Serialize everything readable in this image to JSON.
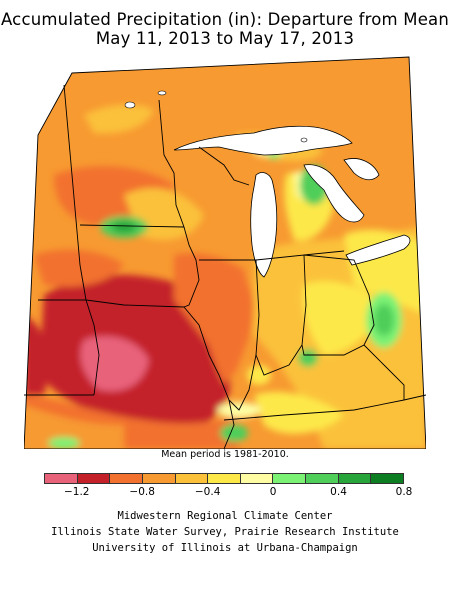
{
  "title": {
    "line1": "Accumulated Precipitation (in): Departure from Mean",
    "line2": "May 11, 2013 to May 17, 2013"
  },
  "note": "Mean period is 1981-2010.",
  "legend": {
    "colors": [
      "#e8627a",
      "#c4202a",
      "#f2712e",
      "#f79a31",
      "#fbc13a",
      "#fde84a",
      "#fefda3",
      "#7cf275",
      "#4fce5a",
      "#27a53a",
      "#0c7d20"
    ],
    "ticks": [
      "−1.2",
      "−0.8",
      "−0.4",
      "0",
      "0.4",
      "0.8"
    ]
  },
  "credits": [
    "Midwestern Regional Climate Center",
    "Illinois State Water Survey, Prairie Research Institute",
    "University of Illinois at Urbana-Champaign"
  ],
  "map": {
    "region": "Midwest US",
    "variable": "precipitation departure from mean",
    "units": "in"
  }
}
